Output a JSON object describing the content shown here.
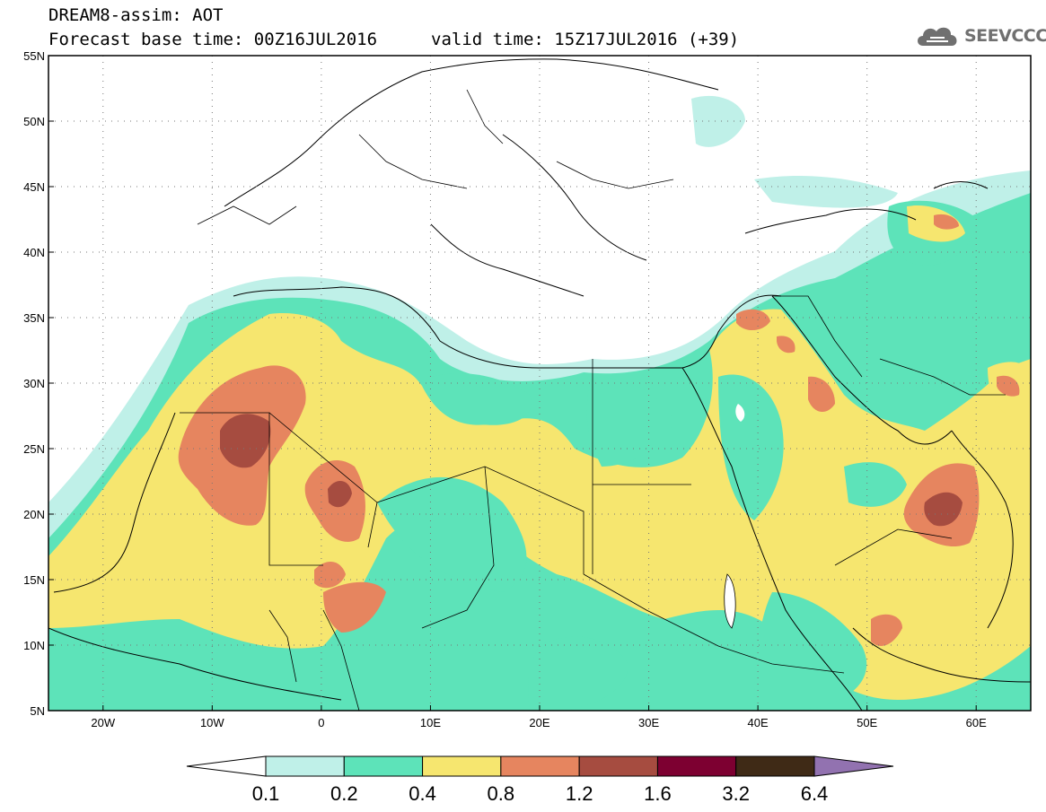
{
  "title": {
    "line1": "DREAM8-assim: AOT",
    "line2": "Forecast base time: 00Z16JUL2016",
    "valid": "valid time: 15Z17JUL2016 (+39)"
  },
  "logo": {
    "text": "SEEVCCC",
    "icon": "cloud-icon",
    "color": "#707070"
  },
  "axes": {
    "lon_range": [
      -25,
      65
    ],
    "lat_range": [
      5,
      55
    ],
    "x_ticks": [
      "20W",
      "10W",
      "0",
      "10E",
      "20E",
      "30E",
      "40E",
      "50E",
      "60E"
    ],
    "x_tick_values": [
      -20,
      -10,
      0,
      10,
      20,
      30,
      40,
      50,
      60
    ],
    "y_ticks": [
      "55N",
      "50N",
      "45N",
      "40N",
      "35N",
      "30N",
      "25N",
      "20N",
      "15N",
      "10N",
      "5N"
    ],
    "y_tick_values": [
      55,
      50,
      45,
      40,
      35,
      30,
      25,
      20,
      15,
      10,
      5
    ],
    "grid": "dotted"
  },
  "colorbar": {
    "levels": [
      "0.1",
      "0.2",
      "0.4",
      "0.8",
      "1.2",
      "1.6",
      "3.2",
      "6.4"
    ],
    "colors": [
      "#ffffff",
      "#bff0e8",
      "#5de3b9",
      "#f6e66f",
      "#e6855f",
      "#a64c40",
      "#7d0031",
      "#3f2a16",
      "#9272b0"
    ]
  }
}
